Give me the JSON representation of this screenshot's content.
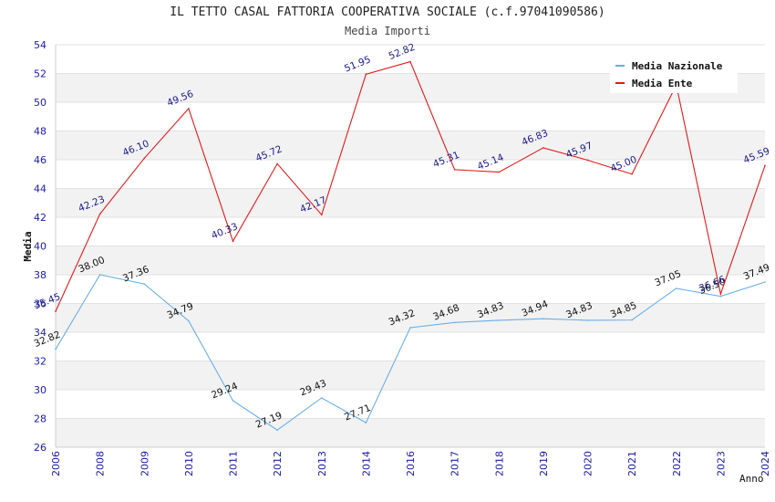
{
  "title": "IL TETTO CASAL FATTORIA COOPERATIVA SOCIALE (c.f.97041090586)",
  "subtitle": "Media Importi",
  "colors": {
    "nazionale": "#6aaee8",
    "ente": "#e01b1b",
    "tick": "#1a1aa6",
    "band": "#f2f2f2"
  },
  "chart_data": {
    "type": "line",
    "ylabel": "Media",
    "xlabel": "Anno",
    "ylim": [
      26,
      54
    ],
    "yticks": [
      26,
      28,
      30,
      32,
      34,
      36,
      38,
      40,
      42,
      44,
      46,
      48,
      50,
      52,
      54
    ],
    "categories": [
      "2006",
      "2008",
      "2009",
      "2010",
      "2011",
      "2012",
      "2013",
      "2014",
      "2016",
      "2017",
      "2018",
      "2019",
      "2020",
      "2021",
      "2022",
      "2023",
      "2024"
    ],
    "grid": true,
    "legend_position": "top-right",
    "series": [
      {
        "name": "Media Nazionale",
        "values": [
          32.82,
          38.0,
          37.36,
          34.79,
          29.24,
          27.19,
          29.43,
          27.71,
          34.32,
          34.68,
          34.83,
          34.94,
          34.83,
          34.85,
          37.05,
          36.5,
          37.49
        ],
        "labels": [
          "32.82",
          "38.00",
          "37.36",
          "34.79",
          "29.24",
          "27.19",
          "29.43",
          "27.71",
          "34.32",
          "34.68",
          "34.83",
          "34.94",
          "34.83",
          "34.85",
          "37.05",
          "36.50",
          "37.49"
        ]
      },
      {
        "name": "Media Ente",
        "values": [
          35.45,
          42.23,
          46.1,
          49.56,
          40.33,
          45.72,
          42.17,
          51.95,
          52.82,
          45.31,
          45.14,
          46.83,
          45.97,
          45.0,
          51.2,
          36.66,
          45.59
        ],
        "labels": [
          "35.45",
          "42.23",
          "46.10",
          "49.56",
          "40.33",
          "45.72",
          "42.17",
          "51.95",
          "52.82",
          "45.31",
          "45.14",
          "46.83",
          "45.97",
          "45.00",
          "",
          "36.66",
          "45.59"
        ]
      }
    ]
  }
}
